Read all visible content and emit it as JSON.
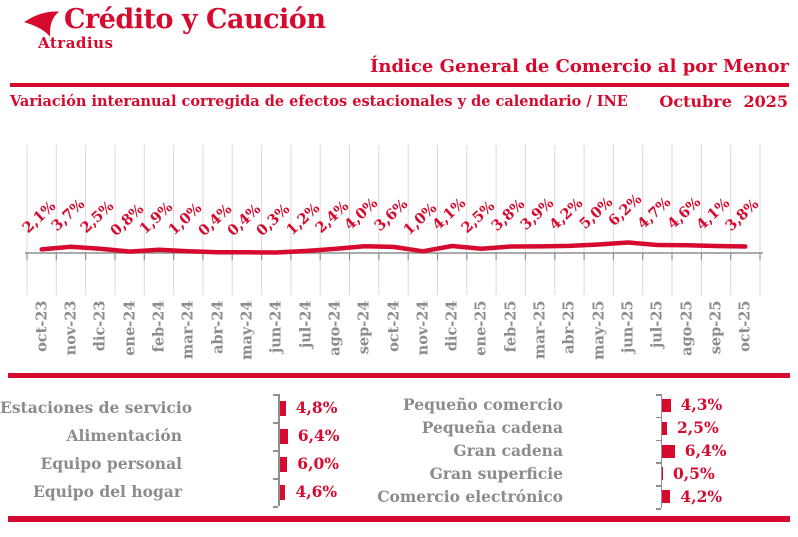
{
  "header": {
    "logo_title": "Crédito y Caución",
    "logo_subtitle": "Atradius",
    "title": "Índice General de Comercio al por Menor",
    "subtitle": "Variación interanual corregida de efectos estacionales y de calendario / INE",
    "period": "Octubre 2025"
  },
  "colors": {
    "red": "#d60a2e",
    "gray_text": "#8c8c8c",
    "gridline": "#d8d8d8",
    "axis": "#8f8f8f"
  },
  "chart_data": [
    {
      "id": "retail-index-line",
      "type": "line",
      "title": "Índice General de Comercio al por Menor",
      "subtitle": "Variación interanual corregida de efectos estacionales y de calendario / INE",
      "unit": "%",
      "legend": "none",
      "grid": "vertical-only",
      "categories": [
        "oct-23",
        "nov-23",
        "dic-23",
        "ene-24",
        "feb-24",
        "mar-24",
        "abr-24",
        "may-24",
        "jun-24",
        "jul-24",
        "ago-24",
        "sep-24",
        "oct-24",
        "nov-24",
        "dic-24",
        "ene-25",
        "feb-25",
        "mar-25",
        "abr-25",
        "may-25",
        "jun-25",
        "jul-25",
        "ago-25",
        "sep-25",
        "oct-25"
      ],
      "values": [
        2.1,
        3.7,
        2.5,
        0.8,
        1.9,
        1.0,
        0.4,
        0.4,
        0.3,
        1.2,
        2.4,
        4.0,
        3.6,
        1.0,
        4.1,
        2.5,
        3.8,
        3.9,
        4.2,
        5.0,
        6.2,
        4.7,
        4.6,
        4.1,
        3.8
      ],
      "data_labels": [
        "2,1%",
        "3,7%",
        "2,5%",
        "0,8%",
        "1,9%",
        "1,0%",
        "0,4%",
        "0,4%",
        "0,3%",
        "1,2%",
        "2,4%",
        "4,0%",
        "3,6%",
        "1,0%",
        "4,1%",
        "2,5%",
        "3,8%",
        "3,9%",
        "4,2%",
        "5,0%",
        "6,2%",
        "4,7%",
        "4,6%",
        "4,1%",
        "3,8%"
      ]
    },
    {
      "id": "breakdown-by-product",
      "type": "bar",
      "orientation": "horizontal",
      "unit": "%",
      "categories": [
        "Estaciones de servicio",
        "Alimentación",
        "Equipo personal",
        "Equipo del hogar"
      ],
      "values": [
        4.8,
        6.4,
        6.0,
        4.6
      ],
      "data_labels": [
        "4,8%",
        "6,4%",
        "6,0%",
        "4,6%"
      ]
    },
    {
      "id": "breakdown-by-channel",
      "type": "bar",
      "orientation": "horizontal",
      "unit": "%",
      "categories": [
        "Pequeño comercio",
        "Pequeña cadena",
        "Gran cadena",
        "Gran superficie",
        "Comercio electrónico"
      ],
      "values": [
        4.3,
        2.5,
        6.4,
        0.5,
        4.2
      ],
      "data_labels": [
        "4,3%",
        "2,5%",
        "6,4%",
        "0,5%",
        "4,2%"
      ]
    }
  ]
}
